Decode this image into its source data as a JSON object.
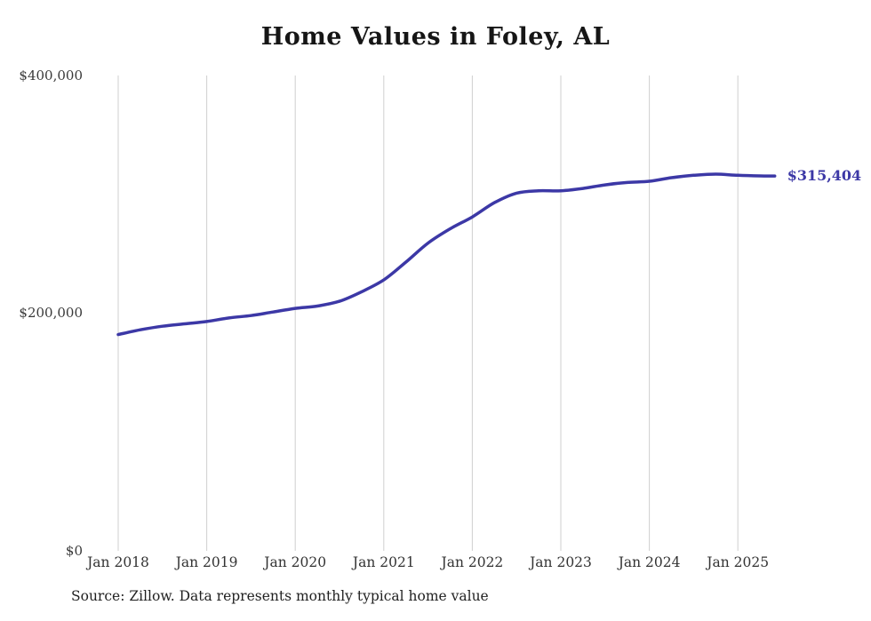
{
  "title": "Home Values in Foley, AL",
  "end_label": "$315,404",
  "source_note": "Source: Zillow. Data represents monthly typical home value",
  "colors": {
    "line": "#3c38a6",
    "grid": "#cfcfcf",
    "axis_text": "#3a3a3a",
    "title_text": "#161616"
  },
  "chart_data": {
    "type": "line",
    "title": "Home Values in Foley, AL",
    "series_name": "Typical home value",
    "x": [
      "2018-01",
      "2018-04",
      "2018-07",
      "2018-10",
      "2019-01",
      "2019-04",
      "2019-07",
      "2019-10",
      "2020-01",
      "2020-04",
      "2020-07",
      "2020-10",
      "2021-01",
      "2021-04",
      "2021-07",
      "2021-10",
      "2022-01",
      "2022-04",
      "2022-07",
      "2022-10",
      "2023-01",
      "2023-04",
      "2023-07",
      "2023-10",
      "2024-01",
      "2024-04",
      "2024-07",
      "2024-10",
      "2025-01",
      "2025-04",
      "2025-06"
    ],
    "values": [
      182000,
      186000,
      189000,
      191000,
      193000,
      196000,
      198000,
      201000,
      204000,
      206000,
      210000,
      218000,
      228000,
      243000,
      259000,
      271000,
      281000,
      293000,
      301000,
      303000,
      303000,
      305000,
      308000,
      310000,
      311000,
      314000,
      316000,
      317000,
      316000,
      315500,
      315404
    ],
    "last_value": 315404,
    "annotation": "$315,404",
    "x_tick_labels": [
      "Jan 2018",
      "Jan 2019",
      "Jan 2020",
      "Jan 2021",
      "Jan 2022",
      "Jan 2023",
      "Jan 2024",
      "Jan 2025"
    ],
    "y_tick_labels": [
      "$0",
      "$200,000",
      "$400,000"
    ],
    "ylim": [
      0,
      400000
    ],
    "grid": "vertical-only",
    "legend": "none"
  }
}
